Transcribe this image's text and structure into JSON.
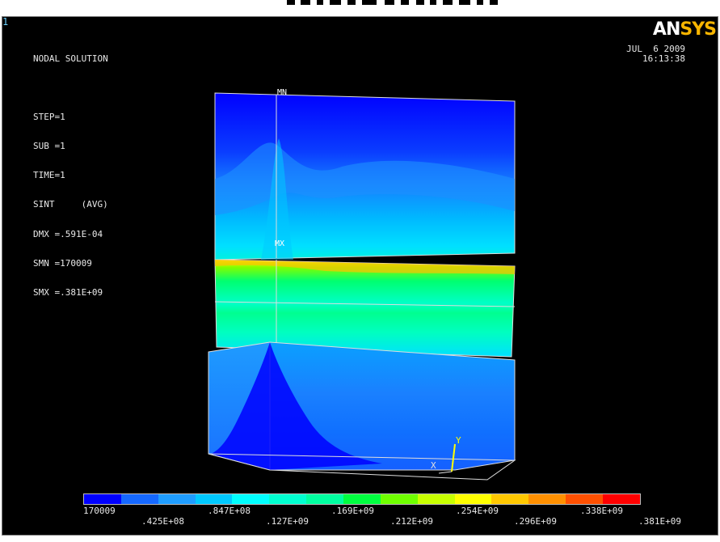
{
  "window_number": "1",
  "plot_info": {
    "lines": [
      "NODAL SOLUTION",
      "",
      "STEP=1",
      "SUB =1",
      "TIME=1",
      "SINT     (AVG)",
      "DMX =.591E-04",
      "SMN =170009",
      "SMX =.381E+09"
    ]
  },
  "date": "JUL  6 2009",
  "time": "16:13:38",
  "logo": {
    "an": "AN",
    "sys": "SYS"
  },
  "markers": {
    "min": "MN",
    "max": "MX"
  },
  "triad": {
    "x": "X",
    "y": "Y"
  },
  "legend": {
    "colors": [
      "#0000ff",
      "#1568ff",
      "#1f9dff",
      "#00c9ff",
      "#00ffff",
      "#00ffd0",
      "#00ffa0",
      "#00ff40",
      "#6fff00",
      "#c8ff00",
      "#ffff00",
      "#ffc800",
      "#ff9000",
      "#ff5000",
      "#ff0000"
    ],
    "labels_top": [
      "170009",
      ".847E+08",
      ".169E+09",
      ".254E+09",
      ".338E+09"
    ],
    "labels_bottom": [
      ".425E+08",
      ".127E+09",
      ".212E+09",
      ".296E+09",
      ".381E+09"
    ]
  }
}
